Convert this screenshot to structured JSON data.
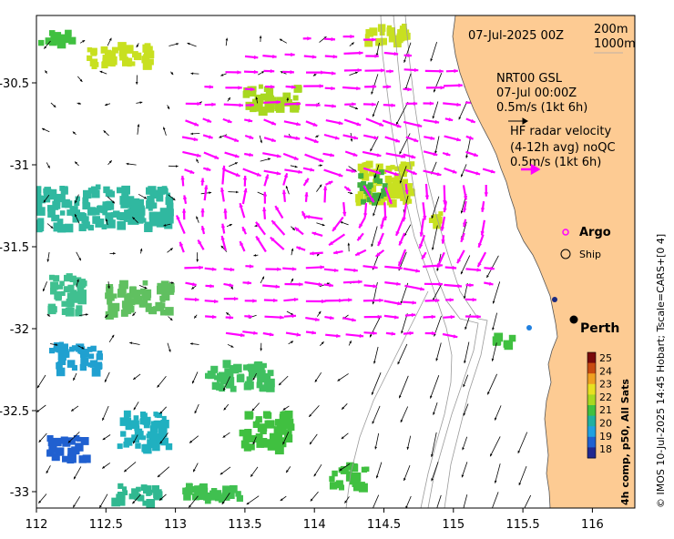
{
  "header": {
    "date": "07-Jul-2025 00Z",
    "contour_a": "200m",
    "contour_b": "1000m"
  },
  "legend": {
    "nrt_l1": "NRT00 GSL",
    "nrt_l2": "07-Jul 00:00Z",
    "nrt_l3": "0.5m/s (1kt 6h)",
    "hf_l1": "HF radar velocity",
    "hf_l2": "(4-12h avg) noQC",
    "hf_l3": "0.5m/s (1kt 6h)",
    "argo": "Argo",
    "ship": "Ship"
  },
  "places": {
    "perth": "Perth"
  },
  "axes": {
    "x_ticks": [
      "112",
      "112.5",
      "113",
      "113.5",
      "114",
      "114.5",
      "115",
      "115.5",
      "116"
    ],
    "y_ticks": [
      "-30.5",
      "-31",
      "-31.5",
      "-32",
      "-32.5",
      "-33"
    ]
  },
  "colorbar": {
    "title": "4h comp, p50, All Sats",
    "labels": [
      "25",
      "24",
      "23",
      "22",
      "21",
      "20",
      "19",
      "18"
    ],
    "colors": [
      "#7a0a0a",
      "#c84a10",
      "#f0a020",
      "#e8e020",
      "#a8d820",
      "#40c040",
      "#20b0a0",
      "#20a0e0",
      "#2060d0",
      "#202890"
    ]
  },
  "sidebar": {
    "credit": "© IMOS 10-Jul-2025 14:45 Hobart; Tscale=CARS+[0 4]"
  },
  "colors": {
    "land": "#fdcb93",
    "hf_arrow": "#ff00ff",
    "model_arrow": "#000000"
  }
}
